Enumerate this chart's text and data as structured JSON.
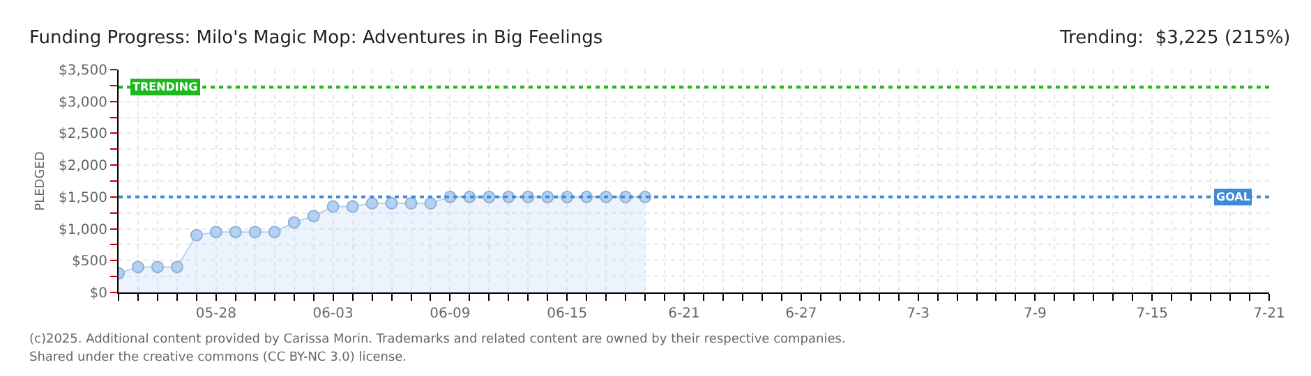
{
  "chart_data": {
    "type": "area",
    "title": "Funding Progress: Milo's Magic Mop: Adventures in Big Feelings",
    "ylabel": "PLEDGED",
    "annotations": [
      "Trending:  $3,225 (215%)",
      "(c)2025. Additional content provided by Carissa Morin. Trademarks and related content are owned by their respective companies.",
      "Shared under the creative commons (CC BY-NC 3.0) license."
    ],
    "x": [
      "--05-23",
      "--05-24",
      "--05-25",
      "--05-26",
      "--05-27",
      "--05-28",
      "--05-29",
      "--05-30",
      "--05-31",
      "--06-01",
      "--06-02",
      "--06-03",
      "--06-04",
      "--06-05",
      "--06-06",
      "--06-07",
      "--06-08",
      "--06-09",
      "--06-10",
      "--06-11",
      "--06-12",
      "--06-13",
      "--06-14",
      "--06-15",
      "--06-16",
      "--06-17",
      "--06-18",
      "--06-19"
    ],
    "series": [
      {
        "color": "#b3d1f2",
        "values": [
          300,
          400,
          400,
          400,
          900,
          950,
          950,
          950,
          950,
          1100,
          1200,
          1350,
          1350,
          1400,
          1400,
          1400,
          1400,
          1500,
          1500,
          1500,
          1500,
          1500,
          1500,
          1500,
          1500,
          1500,
          1500,
          1500
        ]
      }
    ],
    "marker": "circle",
    "xlim": [
      "--05-23",
      "--07-21"
    ],
    "xticks": [
      {
        "value": "--05-23",
        "label": null
      },
      {
        "value": "--05-24",
        "label": null
      },
      {
        "value": "--05-25",
        "label": null
      },
      {
        "value": "--05-26",
        "label": null
      },
      {
        "value": "--05-27",
        "label": null
      },
      {
        "value": "--05-28",
        "label": "05-28"
      },
      {
        "value": "--05-29",
        "label": null
      },
      {
        "value": "--05-30",
        "label": null
      },
      {
        "value": "--05-31",
        "label": null
      },
      {
        "value": "--06-01",
        "label": null
      },
      {
        "value": "--06-02",
        "label": null
      },
      {
        "value": "--06-03",
        "label": "06-03"
      },
      {
        "value": "--06-04",
        "label": null
      },
      {
        "value": "--06-05",
        "label": null
      },
      {
        "value": "--06-06",
        "label": null
      },
      {
        "value": "--06-07",
        "label": null
      },
      {
        "value": "--06-08",
        "label": null
      },
      {
        "value": "--06-09",
        "label": "06-09"
      },
      {
        "value": "--06-10",
        "label": null
      },
      {
        "value": "--06-11",
        "label": null
      },
      {
        "value": "--06-12",
        "label": null
      },
      {
        "value": "--06-13",
        "label": null
      },
      {
        "value": "--06-14",
        "label": null
      },
      {
        "value": "--06-15",
        "label": "06-15"
      },
      {
        "value": "--06-16",
        "label": null
      },
      {
        "value": "--06-17",
        "label": null
      },
      {
        "value": "--06-18",
        "label": null
      },
      {
        "value": "--06-19",
        "label": null
      },
      {
        "value": "--06-20",
        "label": null
      },
      {
        "value": "--06-21",
        "label": "6-21"
      },
      {
        "value": "--06-22",
        "label": null
      },
      {
        "value": "--06-23",
        "label": null
      },
      {
        "value": "--06-24",
        "label": null
      },
      {
        "value": "--06-25",
        "label": null
      },
      {
        "value": "--06-26",
        "label": null
      },
      {
        "value": "--06-27",
        "label": "6-27"
      },
      {
        "value": "--06-28",
        "label": null
      },
      {
        "value": "--06-29",
        "label": null
      },
      {
        "value": "--06-30",
        "label": null
      },
      {
        "value": "--07-01",
        "label": null
      },
      {
        "value": "--07-02",
        "label": null
      },
      {
        "value": "--07-03",
        "label": "7-3"
      },
      {
        "value": "--07-04",
        "label": null
      },
      {
        "value": "--07-05",
        "label": null
      },
      {
        "value": "--07-06",
        "label": null
      },
      {
        "value": "--07-07",
        "label": null
      },
      {
        "value": "--07-08",
        "label": null
      },
      {
        "value": "--07-09",
        "label": "7-9"
      },
      {
        "value": "--07-10",
        "label": null
      },
      {
        "value": "--07-11",
        "label": null
      },
      {
        "value": "--07-12",
        "label": null
      },
      {
        "value": "--07-13",
        "label": null
      },
      {
        "value": "--07-14",
        "label": null
      },
      {
        "value": "--07-15",
        "label": "7-15"
      },
      {
        "value": "--07-16",
        "label": null
      },
      {
        "value": "--07-17",
        "label": null
      },
      {
        "value": "--07-18",
        "label": null
      },
      {
        "value": "--07-19",
        "label": null
      },
      {
        "value": "--07-20",
        "label": null
      },
      {
        "value": "--07-21",
        "label": "7-21"
      }
    ],
    "ylim": [
      0,
      3500
    ],
    "yticks": [
      {
        "value": 0,
        "label": "$0"
      },
      {
        "value": 250,
        "label": null
      },
      {
        "value": 500,
        "label": "$500"
      },
      {
        "value": 750,
        "label": null
      },
      {
        "value": 1000,
        "label": "$1,000"
      },
      {
        "value": 1250,
        "label": null
      },
      {
        "value": 1500,
        "label": "$1,500"
      },
      {
        "value": 1750,
        "label": null
      },
      {
        "value": 2000,
        "label": "$2,000"
      },
      {
        "value": 2250,
        "label": null
      },
      {
        "value": 2500,
        "label": "$2,500"
      },
      {
        "value": 2750,
        "label": null
      },
      {
        "value": 3000,
        "label": "$3,000"
      },
      {
        "value": 3250,
        "label": null
      },
      {
        "value": 3500,
        "label": "$3,500"
      }
    ],
    "grid": true,
    "ref_lines": [
      {
        "axis": "y",
        "value": 1500,
        "label": "GOAL",
        "color": "#3d8ad8",
        "line_style": "dotted"
      },
      {
        "axis": "y",
        "value": 3225,
        "label": "TRENDING",
        "color": "#1fb71f",
        "line_style": "dotted"
      }
    ]
  }
}
